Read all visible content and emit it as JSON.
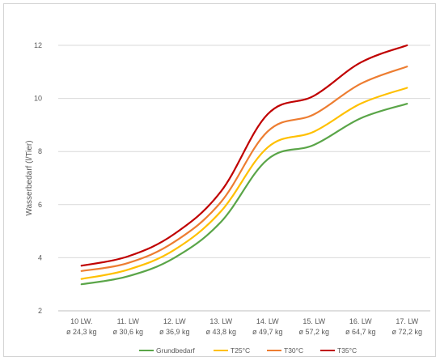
{
  "chart_data": {
    "type": "line",
    "title": "",
    "xlabel": "",
    "ylabel": "Wasserbedarf (l/Tier)",
    "ylim": [
      2,
      12
    ],
    "yticks": [
      2,
      4,
      6,
      8,
      10,
      12
    ],
    "grid": true,
    "legend_position": "bottom",
    "categories": [
      {
        "line1": "10 LW.",
        "line2": "ø 24,3 kg"
      },
      {
        "line1": "11. LW",
        "line2": "ø 30,6 kg"
      },
      {
        "line1": "12. LW",
        "line2": "ø 36,9 kg"
      },
      {
        "line1": "13. LW",
        "line2": "ø 43,8 kg"
      },
      {
        "line1": "14. LW",
        "line2": "ø 49,7 kg"
      },
      {
        "line1": "15. LW",
        "line2": "ø 57,2 kg"
      },
      {
        "line1": "16. LW",
        "line2": "ø 64,7 kg"
      },
      {
        "line1": "17. LW",
        "line2": "ø 72,2 kg"
      }
    ],
    "series": [
      {
        "name": "Grundbedarf",
        "color": "#5aa548",
        "values": [
          3.0,
          3.3,
          4.0,
          5.35,
          7.7,
          8.25,
          9.25,
          9.8
        ]
      },
      {
        "name": "T25°C",
        "color": "#ffc000",
        "values": [
          3.2,
          3.55,
          4.3,
          5.75,
          8.15,
          8.75,
          9.8,
          10.4
        ]
      },
      {
        "name": "T30°C",
        "color": "#ed7d31",
        "values": [
          3.5,
          3.8,
          4.6,
          6.1,
          8.75,
          9.4,
          10.55,
          11.2
        ]
      },
      {
        "name": "T35°C",
        "color": "#c00000",
        "values": [
          3.7,
          4.05,
          4.9,
          6.5,
          9.4,
          10.1,
          11.35,
          12.0
        ]
      }
    ]
  },
  "colors": {
    "grid": "#d9d9d9",
    "axis": "#bfbfbf",
    "text": "#595959"
  }
}
